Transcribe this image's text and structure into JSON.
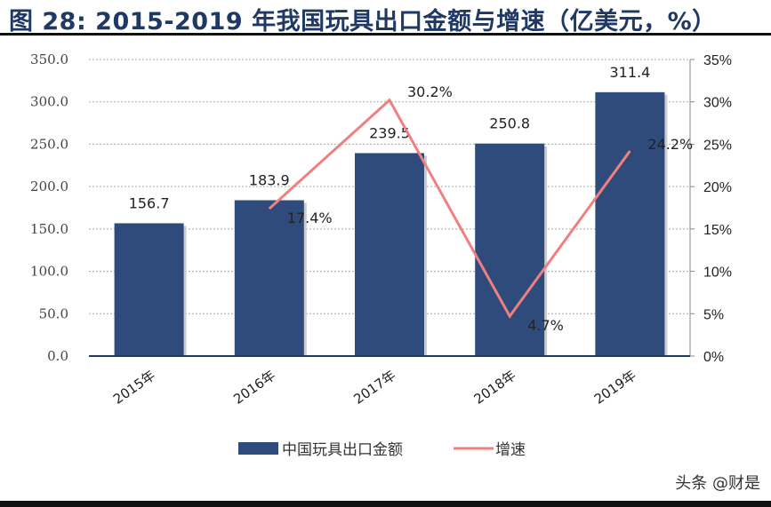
{
  "title": "图 28: 2015-2019 年我国玩具出口金额与增速（亿美元，%）",
  "watermark": "头条 @财是",
  "chart_data": {
    "type": "bar+line",
    "categories": [
      "2015年",
      "2016年",
      "2017年",
      "2018年",
      "2019年"
    ],
    "series": [
      {
        "name": "中国玩具出口金额",
        "type": "bar",
        "axis": "left",
        "values": [
          156.7,
          183.9,
          239.5,
          250.8,
          311.4
        ],
        "labels": [
          "156.7",
          "183.9",
          "239.5",
          "250.8",
          "311.4"
        ],
        "color": "#2f4b7c"
      },
      {
        "name": "增速",
        "type": "line",
        "axis": "right",
        "values": [
          null,
          17.4,
          30.2,
          4.7,
          24.2
        ],
        "labels": [
          "",
          "17.4%",
          "30.2%",
          "4.7%",
          "24.2%"
        ],
        "color": "#f08080"
      }
    ],
    "left_axis": {
      "ylim": [
        0,
        350
      ],
      "ticks": [
        "0.0",
        "50.0",
        "100.0",
        "150.0",
        "200.0",
        "250.0",
        "300.0",
        "350.0"
      ]
    },
    "right_axis": {
      "ylim": [
        0,
        35
      ],
      "ticks": [
        "0%",
        "5%",
        "10%",
        "15%",
        "20%",
        "25%",
        "30%",
        "35%"
      ]
    },
    "grid": true,
    "legend_position": "bottom"
  }
}
